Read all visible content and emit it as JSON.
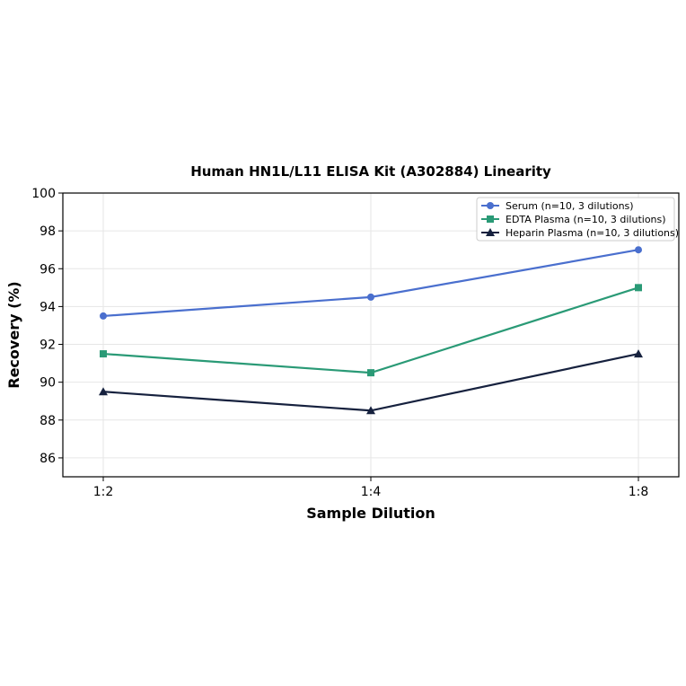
{
  "chart_data": {
    "type": "line",
    "title": "Human HN1L/L11 ELISA Kit (A302884) Linearity",
    "xlabel": "Sample Dilution",
    "ylabel": "Recovery (%)",
    "categories": [
      "1:2",
      "1:4",
      "1:8"
    ],
    "ylim": [
      85,
      100
    ],
    "yticks": [
      86,
      88,
      90,
      92,
      94,
      96,
      98,
      100
    ],
    "grid": true,
    "legend_position": "top-right",
    "series": [
      {
        "name": "Serum (n=10, 3 dilutions)",
        "values": [
          93.5,
          94.5,
          97.0
        ],
        "color": "#4a6fce",
        "marker": "circle"
      },
      {
        "name": "EDTA Plasma (n=10, 3 dilutions)",
        "values": [
          91.5,
          90.5,
          95.0
        ],
        "color": "#2a9a76",
        "marker": "square"
      },
      {
        "name": "Heparin Plasma (n=10, 3 dilutions)",
        "values": [
          89.5,
          88.5,
          91.5
        ],
        "color": "#16213e",
        "marker": "triangle"
      }
    ]
  }
}
